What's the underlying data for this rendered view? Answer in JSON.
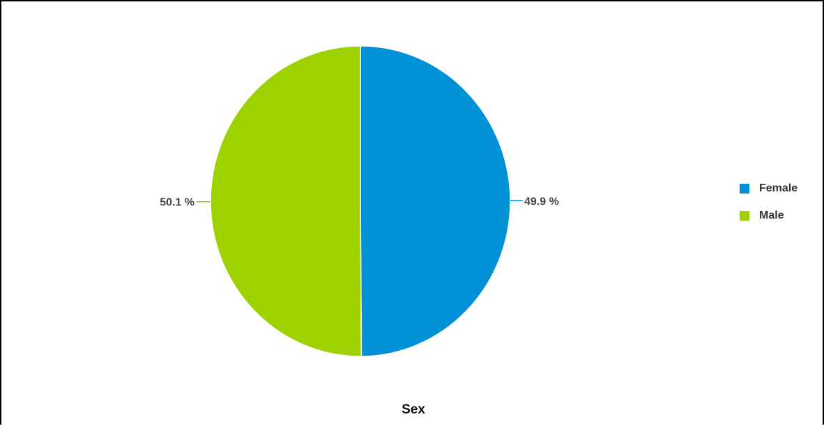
{
  "chart_data": {
    "type": "pie",
    "title": "Sex",
    "slices": [
      {
        "name": "Female",
        "value": 49.9,
        "label": "49.9 %",
        "color": "#0090d5"
      },
      {
        "name": "Male",
        "value": 50.1,
        "label": "50.1 %",
        "color": "#9dd100"
      }
    ],
    "legend_position": "right"
  }
}
